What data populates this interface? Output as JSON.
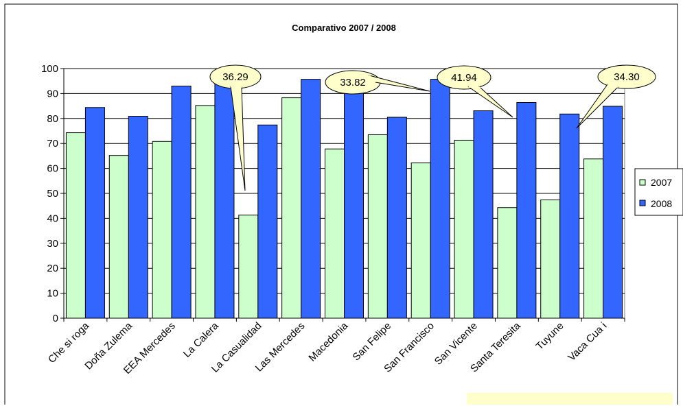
{
  "chart_data": {
    "type": "bar",
    "title": "Comparativo 2007 / 2008",
    "xlabel": "",
    "ylabel": "",
    "ylim": [
      0,
      100
    ],
    "yticks": [
      0,
      10,
      20,
      30,
      40,
      50,
      60,
      70,
      80,
      90,
      100
    ],
    "grid": true,
    "legend_position": "right",
    "categories": [
      "Che si roga",
      "Doña Zulema",
      "EEA Mercedes",
      "La Calera",
      "La Casualidad",
      "Las Mercedes",
      "Macedonia",
      "San Felipe",
      "San Francisco",
      "San Vicente",
      "Santa Teresita",
      "Tuyune",
      "Vaca Cua i"
    ],
    "series": [
      {
        "name": "2007",
        "color": "#ccffcc",
        "values": [
          74.3,
          65.2,
          70.8,
          85.2,
          41.3,
          88.3,
          67.8,
          73.5,
          62.2,
          71.3,
          44.3,
          47.4,
          63.8
        ]
      },
      {
        "name": "2008",
        "color": "#3366ff",
        "values": [
          84.4,
          80.9,
          93.0,
          95.3,
          77.4,
          95.7,
          94.0,
          80.5,
          95.7,
          83.1,
          86.4,
          81.8,
          84.9
        ]
      }
    ],
    "annotations": [
      {
        "text": "36.29",
        "category": "La Casualidad"
      },
      {
        "text": "33.82",
        "category": "San Francisco"
      },
      {
        "text": "41.94",
        "category": "Santa Teresita"
      },
      {
        "text": "34.30",
        "category": "Tuyune"
      }
    ]
  }
}
